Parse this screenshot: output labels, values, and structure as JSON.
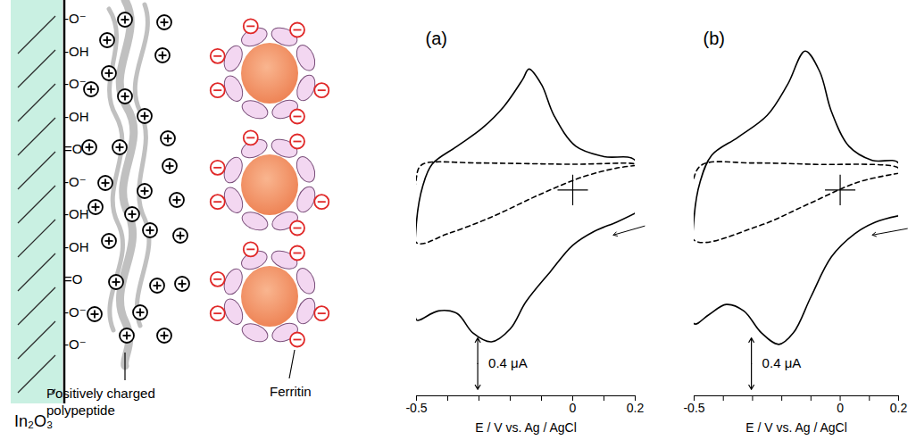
{
  "diagram": {
    "substrate": "In₂O₃",
    "surface_groups": [
      "-O⁻",
      "-OH",
      "-O⁻",
      "-OH",
      "=O",
      "-O⁻",
      "-OH",
      "-OH",
      "=O",
      "-O⁻",
      "-O⁻"
    ],
    "labels": {
      "polypeptide": "Positively charged polypeptide",
      "ferritin": "Ferritin"
    }
  },
  "chart_data": [
    {
      "type": "line",
      "title": "(a)",
      "x_label": "E / V vs. Ag / AgCl",
      "xlim": [
        -0.5,
        0.2
      ],
      "xticks": [
        -0.5,
        {
          "value": -0.4,
          "label": null
        },
        {
          "value": -0.3,
          "label": null
        },
        {
          "value": -0.2,
          "label": null
        },
        {
          "value": -0.1,
          "label": null
        },
        0,
        {
          "value": 0.1,
          "label": null
        },
        0.2
      ],
      "ylim": [
        -1.6,
        1.3
      ],
      "tick_labels": "x",
      "scale_bar": {
        "value": 0.4,
        "label": "0.4 μA"
      },
      "zero_cross": {
        "x": 0,
        "y": 0
      },
      "series": [
        {
          "color": "#000000",
          "line_style": "solid",
          "x": [
            0.2,
            0.14,
            0.07,
            0.0,
            -0.07,
            -0.15,
            -0.2,
            -0.26,
            -0.32,
            -0.37,
            -0.43,
            -0.49,
            -0.5,
            -0.5,
            -0.48,
            -0.45,
            -0.37,
            -0.29,
            -0.22,
            -0.16,
            -0.14,
            -0.1,
            -0.06,
            0.01,
            0.1,
            0.2,
            0.2
          ],
          "values": [
            -0.18,
            -0.25,
            -0.32,
            -0.43,
            -0.63,
            -0.87,
            -1.08,
            -1.18,
            -1.11,
            -0.96,
            -0.94,
            -1.01,
            -1.01,
            -0.25,
            0.03,
            0.2,
            0.34,
            0.48,
            0.65,
            0.86,
            0.94,
            0.82,
            0.58,
            0.34,
            0.26,
            0.23,
            -0.18
          ]
        },
        {
          "color": "#000000",
          "line_style": "dashed",
          "x": [
            0.2,
            0.14,
            0.03,
            -0.11,
            -0.26,
            -0.4,
            -0.5,
            -0.5,
            -0.49,
            -0.47,
            -0.3,
            0.0,
            0.2,
            0.2
          ],
          "values": [
            0.19,
            0.17,
            0.1,
            -0.04,
            -0.21,
            -0.34,
            -0.41,
            0.1,
            0.18,
            0.21,
            0.21,
            0.2,
            0.2,
            0.19
          ]
        }
      ]
    },
    {
      "type": "line",
      "title": "(b)",
      "x_label": "E / V vs. Ag / AgCl",
      "xlim": [
        -0.5,
        0.2
      ],
      "xticks": [
        -0.5,
        {
          "value": -0.4,
          "label": null
        },
        {
          "value": -0.3,
          "label": null
        },
        {
          "value": -0.2,
          "label": null
        },
        {
          "value": -0.1,
          "label": null
        },
        0,
        {
          "value": 0.1,
          "label": null
        },
        0.2
      ],
      "ylim": [
        -1.6,
        1.3
      ],
      "tick_labels": "x",
      "scale_bar": {
        "value": 0.4,
        "label": "0.4 μA"
      },
      "zero_cross": {
        "x": 0,
        "y": 0
      },
      "series": [
        {
          "color": "#000000",
          "line_style": "solid",
          "x": [
            0.2,
            0.12,
            0.05,
            -0.03,
            -0.1,
            -0.16,
            -0.21,
            -0.27,
            -0.33,
            -0.39,
            -0.45,
            -0.5,
            -0.5,
            -0.48,
            -0.44,
            -0.35,
            -0.25,
            -0.18,
            -0.12,
            -0.07,
            -0.03,
            0.03,
            0.11,
            0.2,
            0.2
          ],
          "values": [
            -0.2,
            -0.25,
            -0.34,
            -0.52,
            -0.83,
            -1.11,
            -1.2,
            -1.11,
            -0.94,
            -0.89,
            -0.97,
            -1.04,
            -0.21,
            0.06,
            0.27,
            0.41,
            0.58,
            0.82,
            1.08,
            0.92,
            0.61,
            0.34,
            0.23,
            0.21,
            -0.2
          ]
        },
        {
          "color": "#000000",
          "line_style": "dashed",
          "x": [
            0.2,
            0.06,
            -0.11,
            -0.28,
            -0.5,
            -0.5,
            -0.47,
            -0.3,
            -0.1,
            0.2,
            0.2
          ],
          "values": [
            0.13,
            0.06,
            -0.11,
            -0.28,
            -0.39,
            0.1,
            0.2,
            0.21,
            0.2,
            0.17,
            0.13
          ]
        }
      ]
    }
  ]
}
